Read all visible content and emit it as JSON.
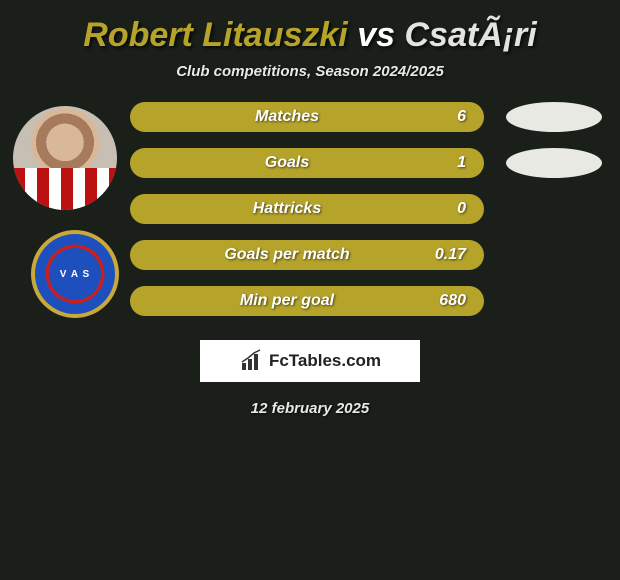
{
  "title": {
    "player1": "Robert Litauszki",
    "vs": "vs",
    "player2": "CsatÃ¡ri",
    "player1_color": "#b5a32a",
    "vs_color": "#ffffff",
    "player2_color": "#e4e4de"
  },
  "subtitle": "Club competitions, Season 2024/2025",
  "stats": [
    {
      "label": "Matches",
      "value": "6",
      "has_right_pill": true
    },
    {
      "label": "Goals",
      "value": "1",
      "has_right_pill": true
    },
    {
      "label": "Hattricks",
      "value": "0",
      "has_right_pill": false
    },
    {
      "label": "Goals per match",
      "value": "0.17",
      "has_right_pill": false
    },
    {
      "label": "Min per goal",
      "value": "680",
      "has_right_pill": false
    }
  ],
  "colors": {
    "background": "#1a1f1a",
    "pill_left_bg": "#b5a32a",
    "pill_right_bg": "#e9e9e3",
    "text": "#ffffff"
  },
  "logo_text": "FcTables.com",
  "date": "12 february 2025",
  "club_badge_text": "V A S"
}
